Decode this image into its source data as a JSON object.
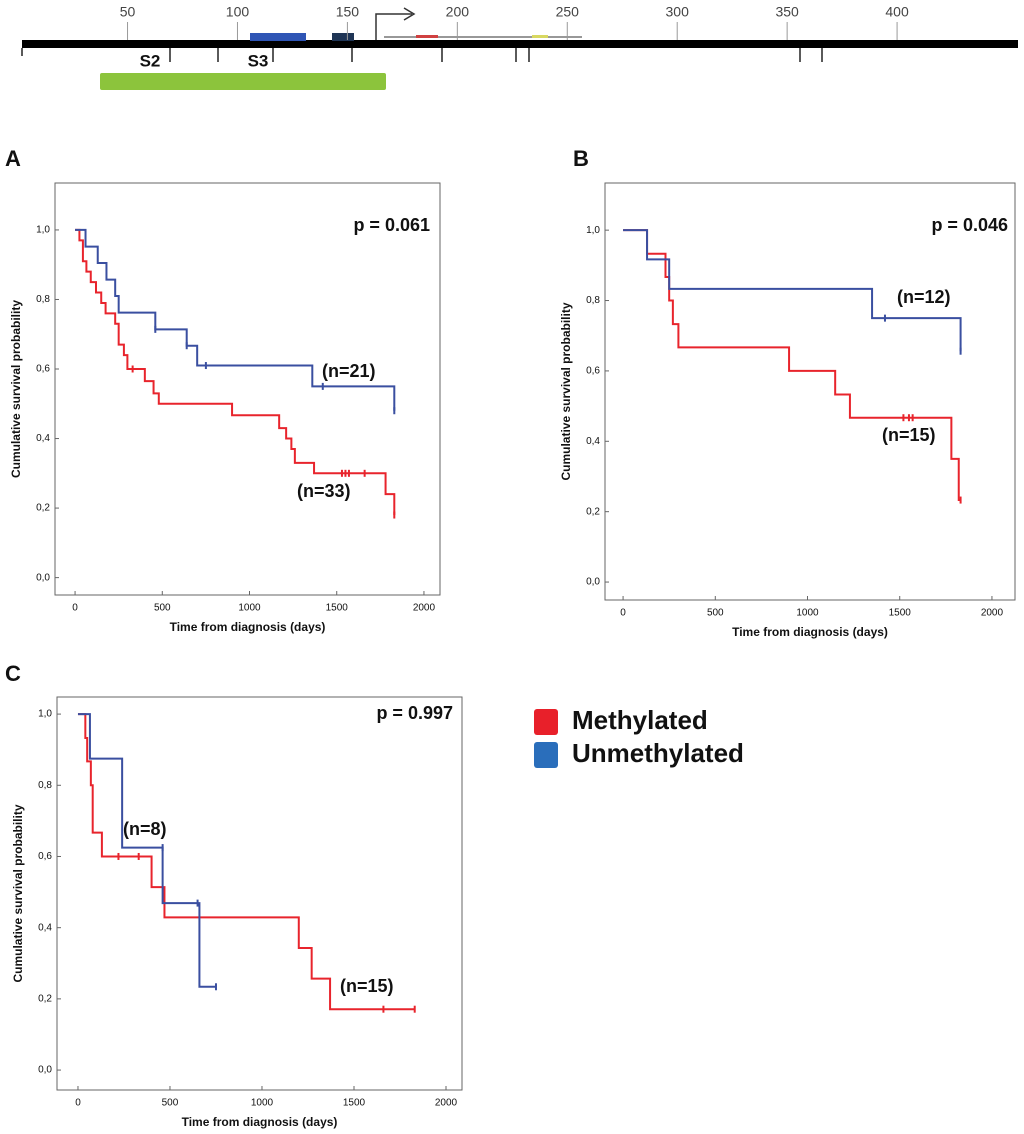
{
  "diagram": {
    "xlim": [
      2,
      455
    ],
    "xticks": [
      50,
      100,
      150,
      200,
      250,
      300,
      350,
      400
    ],
    "labels": [
      "S2",
      "S3"
    ]
  },
  "legend": {
    "items": [
      {
        "label": "Methylated",
        "color": "#e8202a"
      },
      {
        "label": "Unmethylated",
        "color": "#2a6ebb"
      }
    ]
  },
  "chart_data": [
    {
      "type": "line",
      "step": true,
      "label": "A",
      "annotation": "p = 0.061",
      "xlabel": "Time from diagnosis (days)",
      "ylabel": "Cumulative survival probability",
      "xlim": [
        -115,
        2092
      ],
      "ylim": [
        -0.05,
        1.135
      ],
      "xticks": [
        0,
        500,
        1000,
        1500,
        2000
      ],
      "yticks": [
        {
          "value": 0,
          "label": "0,0"
        },
        {
          "value": 0.2,
          "label": "0,2"
        },
        {
          "value": 0.4,
          "label": "0,4"
        },
        {
          "value": 0.6,
          "label": "0,6"
        },
        {
          "value": 0.8,
          "label": "0,8"
        },
        {
          "value": 1,
          "label": "1,0"
        }
      ],
      "series": [
        {
          "n_label": "(n=33)",
          "color": "#e8242c",
          "x": [
            0,
            25,
            45,
            65,
            90,
            120,
            150,
            175,
            200,
            230,
            250,
            280,
            300,
            400,
            450,
            480,
            900,
            1170,
            1210,
            1240,
            1260,
            1370,
            1780,
            1830
          ],
          "values": [
            1.0,
            0.97,
            0.91,
            0.88,
            0.85,
            0.82,
            0.79,
            0.76,
            0.76,
            0.73,
            0.67,
            0.64,
            0.6,
            0.565,
            0.53,
            0.5,
            0.467,
            0.43,
            0.4,
            0.37,
            0.33,
            0.3,
            0.24,
            0.18
          ],
          "censor_x": [
            330,
            1530,
            1550,
            1570,
            1660,
            1830
          ],
          "censor_values": [
            0.6,
            0.3,
            0.3,
            0.3,
            0.3,
            0.18
          ]
        },
        {
          "n_label": "(n=21)",
          "color": "#3a4fa0",
          "x": [
            0,
            60,
            130,
            180,
            230,
            250,
            460,
            640,
            700,
            1360,
            1830
          ],
          "values": [
            1.0,
            0.952,
            0.905,
            0.857,
            0.81,
            0.762,
            0.714,
            0.667,
            0.61,
            0.55,
            0.48
          ],
          "censor_x": [
            460,
            640,
            750,
            1420,
            1830
          ],
          "censor_values": [
            0.714,
            0.667,
            0.61,
            0.55,
            0.48
          ]
        }
      ]
    },
    {
      "type": "line",
      "step": true,
      "label": "B",
      "annotation": "p = 0.046",
      "xlabel": "Time from diagnosis (days)",
      "ylabel": "Cumulative survival probability",
      "xlim": [
        -98,
        2125
      ],
      "ylim": [
        -0.051,
        1.134
      ],
      "xticks": [
        0,
        500,
        1000,
        1500,
        2000
      ],
      "yticks": [
        {
          "value": 0,
          "label": "0,0"
        },
        {
          "value": 0.2,
          "label": "0,2"
        },
        {
          "value": 0.4,
          "label": "0,4"
        },
        {
          "value": 0.6,
          "label": "0,6"
        },
        {
          "value": 0.8,
          "label": "0,8"
        },
        {
          "value": 1,
          "label": "1,0"
        }
      ],
      "series": [
        {
          "n_label": "(n=15)",
          "color": "#e8242c",
          "x": [
            0,
            130,
            230,
            250,
            270,
            300,
            900,
            1150,
            1230,
            1780,
            1820,
            1830
          ],
          "values": [
            1.0,
            0.933,
            0.867,
            0.8,
            0.733,
            0.667,
            0.6,
            0.533,
            0.467,
            0.35,
            0.233,
            0.233
          ],
          "censor_x": [
            1520,
            1550,
            1570,
            1830
          ],
          "censor_values": [
            0.467,
            0.467,
            0.467,
            0.233
          ]
        },
        {
          "n_label": "(n=12)",
          "color": "#3a4fa0",
          "x": [
            0,
            130,
            250,
            1350,
            1830
          ],
          "values": [
            1.0,
            0.917,
            0.833,
            0.75,
            0.656
          ],
          "censor_x": [
            1420,
            1830
          ],
          "censor_values": [
            0.75,
            0.656
          ]
        }
      ]
    },
    {
      "type": "line",
      "step": true,
      "label": "C",
      "annotation": "p = 0.997",
      "xlabel": "Time from diagnosis (days)",
      "ylabel": "Cumulative survival probability",
      "xlim": [
        -114,
        2087
      ],
      "ylim": [
        -0.056,
        1.048
      ],
      "xticks": [
        0,
        500,
        1000,
        1500,
        2000
      ],
      "yticks": [
        {
          "value": 0,
          "label": "0,0"
        },
        {
          "value": 0.2,
          "label": "0,2"
        },
        {
          "value": 0.4,
          "label": "0,4"
        },
        {
          "value": 0.6,
          "label": "0,6"
        },
        {
          "value": 0.8,
          "label": "0,8"
        },
        {
          "value": 1,
          "label": "1,0"
        }
      ],
      "series": [
        {
          "n_label": "(n=15)",
          "color": "#e8242c",
          "x": [
            0,
            40,
            50,
            70,
            80,
            130,
            400,
            470,
            1200,
            1270,
            1370,
            1830
          ],
          "values": [
            1.0,
            0.933,
            0.867,
            0.8,
            0.667,
            0.6,
            0.514,
            0.429,
            0.343,
            0.257,
            0.171,
            0.171
          ],
          "censor_x": [
            220,
            330,
            1660,
            1830
          ],
          "censor_values": [
            0.6,
            0.6,
            0.171,
            0.171
          ]
        },
        {
          "n_label": "(n=8)",
          "color": "#3a4fa0",
          "x": [
            0,
            65,
            240,
            460,
            660,
            750
          ],
          "values": [
            1.0,
            0.875,
            0.625,
            0.469,
            0.234,
            0.234
          ],
          "censor_x": [
            460,
            650,
            750
          ],
          "censor_values": [
            0.625,
            0.469,
            0.234
          ]
        }
      ]
    }
  ]
}
